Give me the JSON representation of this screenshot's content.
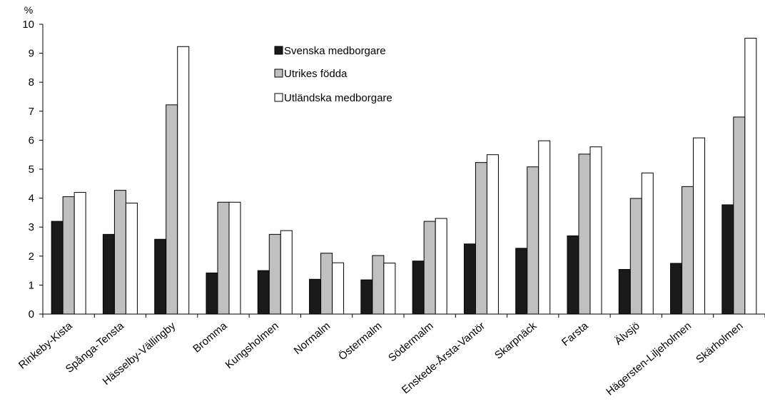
{
  "chart_data": {
    "type": "bar",
    "ylabel": "%",
    "ylim": [
      0,
      10
    ],
    "yticks": [
      0,
      1,
      2,
      3,
      4,
      5,
      6,
      7,
      8,
      9,
      10
    ],
    "grid": false,
    "legend_position": "top-center",
    "categories": [
      "Rinkeby-Kista",
      "Spånga-Tensta",
      "Hässelby-Vällingby",
      "Bromma",
      "Kungsholmen",
      "Normalm",
      "Östermalm",
      "Södermalm",
      "Enskede-Årsta-Vantör",
      "Skarpnäck",
      "Farsta",
      "Älvsjö",
      "Hägersten-Liljeholmen",
      "Skärholmen"
    ],
    "series": [
      {
        "name": "Svenska medborgare",
        "color": "#1a1a1a",
        "values": [
          3.2,
          2.75,
          2.58,
          1.42,
          1.5,
          1.2,
          1.18,
          1.83,
          2.42,
          2.27,
          2.7,
          1.54,
          1.75,
          3.77
        ]
      },
      {
        "name": "Utrikes födda",
        "color": "#c0c0c0",
        "values": [
          4.05,
          4.27,
          7.22,
          3.86,
          2.75,
          2.1,
          2.02,
          3.2,
          5.23,
          5.08,
          5.52,
          3.99,
          4.4,
          6.8
        ]
      },
      {
        "name": "Utländska medborgare",
        "color": "#ffffff",
        "values": [
          4.2,
          3.83,
          9.23,
          3.86,
          2.88,
          1.77,
          1.76,
          3.3,
          5.5,
          5.98,
          5.77,
          4.87,
          6.08,
          9.52
        ]
      }
    ]
  }
}
